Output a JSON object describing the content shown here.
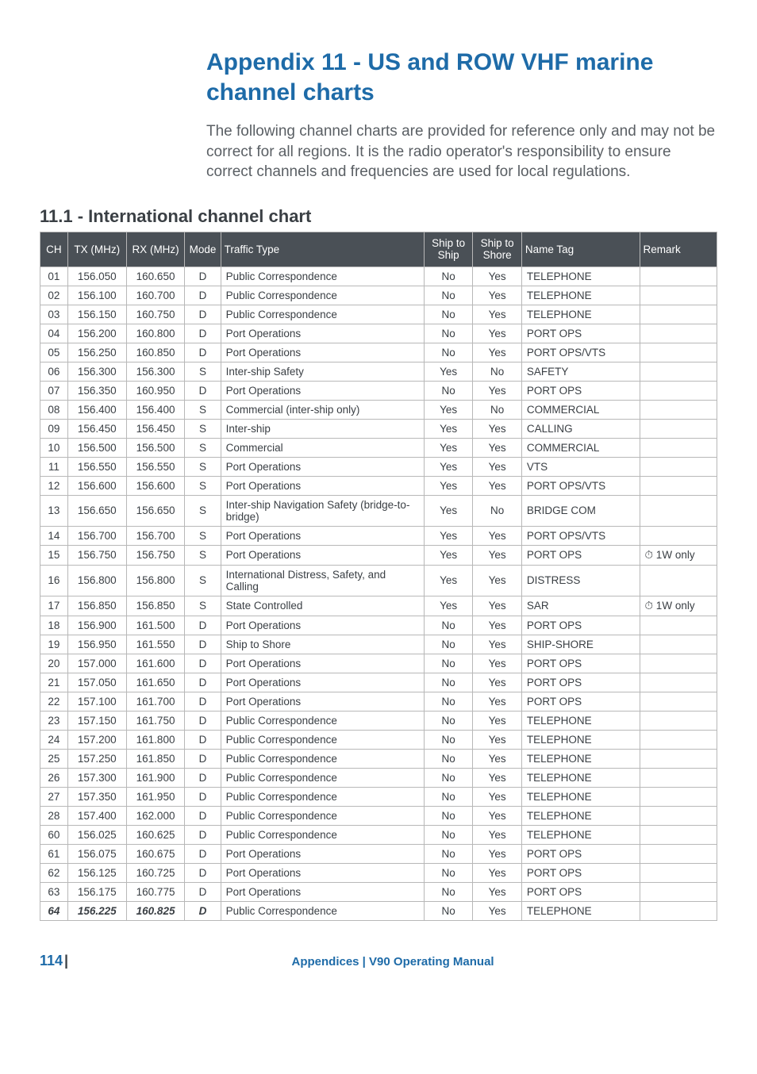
{
  "title": "Appendix 11  -  US and ROW VHF marine channel charts",
  "intro": "The following channel charts are provided for reference only and may not be correct for all regions. It is the radio operator's responsibility to ensure correct channels and frequencies are used for local regulations.",
  "section_title": "11.1 - International channel chart",
  "columns": [
    "CH",
    "TX (MHz)",
    "RX (MHz)",
    "Mode",
    "Traffic Type",
    "Ship to Ship",
    "Ship to Shore",
    "Name Tag",
    "Remark"
  ],
  "rows": [
    {
      "ch": "01",
      "tx": "156.050",
      "rx": "160.650",
      "mode": "D",
      "traffic": "Public Correspondence",
      "ship": "No",
      "shore": "Yes",
      "tag": "TELEPHONE",
      "remark": ""
    },
    {
      "ch": "02",
      "tx": "156.100",
      "rx": "160.700",
      "mode": "D",
      "traffic": "Public Correspondence",
      "ship": "No",
      "shore": "Yes",
      "tag": "TELEPHONE",
      "remark": ""
    },
    {
      "ch": "03",
      "tx": "156.150",
      "rx": "160.750",
      "mode": "D",
      "traffic": "Public Correspondence",
      "ship": "No",
      "shore": "Yes",
      "tag": "TELEPHONE",
      "remark": ""
    },
    {
      "ch": "04",
      "tx": "156.200",
      "rx": "160.800",
      "mode": "D",
      "traffic": "Port Operations",
      "ship": "No",
      "shore": "Yes",
      "tag": "PORT OPS",
      "remark": ""
    },
    {
      "ch": "05",
      "tx": "156.250",
      "rx": "160.850",
      "mode": "D",
      "traffic": "Port Operations",
      "ship": "No",
      "shore": "Yes",
      "tag": "PORT OPS/VTS",
      "remark": ""
    },
    {
      "ch": "06",
      "tx": "156.300",
      "rx": "156.300",
      "mode": "S",
      "traffic": "Inter-ship Safety",
      "ship": "Yes",
      "shore": "No",
      "tag": "SAFETY",
      "remark": ""
    },
    {
      "ch": "07",
      "tx": "156.350",
      "rx": "160.950",
      "mode": "D",
      "traffic": "Port Operations",
      "ship": "No",
      "shore": "Yes",
      "tag": "PORT OPS",
      "remark": ""
    },
    {
      "ch": "08",
      "tx": "156.400",
      "rx": "156.400",
      "mode": "S",
      "traffic": "Commercial (inter-ship only)",
      "ship": "Yes",
      "shore": "No",
      "tag": "COMMERCIAL",
      "remark": ""
    },
    {
      "ch": "09",
      "tx": "156.450",
      "rx": "156.450",
      "mode": "S",
      "traffic": "Inter-ship",
      "ship": "Yes",
      "shore": "Yes",
      "tag": "CALLING",
      "remark": ""
    },
    {
      "ch": "10",
      "tx": "156.500",
      "rx": "156.500",
      "mode": "S",
      "traffic": "Commercial",
      "ship": "Yes",
      "shore": "Yes",
      "tag": "COMMERCIAL",
      "remark": ""
    },
    {
      "ch": "11",
      "tx": "156.550",
      "rx": "156.550",
      "mode": "S",
      "traffic": "Port Operations",
      "ship": "Yes",
      "shore": "Yes",
      "tag": "VTS",
      "remark": ""
    },
    {
      "ch": "12",
      "tx": "156.600",
      "rx": "156.600",
      "mode": "S",
      "traffic": "Port Operations",
      "ship": "Yes",
      "shore": "Yes",
      "tag": "PORT OPS/VTS",
      "remark": ""
    },
    {
      "ch": "13",
      "tx": "156.650",
      "rx": "156.650",
      "mode": "S",
      "traffic": "Inter-ship Navigation Safety (bridge-to-bridge)",
      "ship": "Yes",
      "shore": "No",
      "tag": "BRIDGE COM",
      "remark": ""
    },
    {
      "ch": "14",
      "tx": "156.700",
      "rx": "156.700",
      "mode": "S",
      "traffic": "Port Operations",
      "ship": "Yes",
      "shore": "Yes",
      "tag": "PORT OPS/VTS",
      "remark": ""
    },
    {
      "ch": "15",
      "tx": "156.750",
      "rx": "156.750",
      "mode": "S",
      "traffic": "Port Operations",
      "ship": "Yes",
      "shore": "Yes",
      "tag": "PORT OPS",
      "remark": "⏱ 1W only"
    },
    {
      "ch": "16",
      "tx": "156.800",
      "rx": "156.800",
      "mode": "S",
      "traffic": "International Distress, Safety, and Calling",
      "ship": "Yes",
      "shore": "Yes",
      "tag": "DISTRESS",
      "remark": ""
    },
    {
      "ch": "17",
      "tx": "156.850",
      "rx": "156.850",
      "mode": "S",
      "traffic": "State Controlled",
      "ship": "Yes",
      "shore": "Yes",
      "tag": "SAR",
      "remark": "⏱ 1W only"
    },
    {
      "ch": "18",
      "tx": "156.900",
      "rx": "161.500",
      "mode": "D",
      "traffic": "Port Operations",
      "ship": "No",
      "shore": "Yes",
      "tag": "PORT OPS",
      "remark": ""
    },
    {
      "ch": "19",
      "tx": "156.950",
      "rx": "161.550",
      "mode": "D",
      "traffic": "Ship to Shore",
      "ship": "No",
      "shore": "Yes",
      "tag": "SHIP-SHORE",
      "remark": ""
    },
    {
      "ch": "20",
      "tx": "157.000",
      "rx": "161.600",
      "mode": "D",
      "traffic": "Port Operations",
      "ship": "No",
      "shore": "Yes",
      "tag": "PORT OPS",
      "remark": ""
    },
    {
      "ch": "21",
      "tx": "157.050",
      "rx": "161.650",
      "mode": "D",
      "traffic": "Port Operations",
      "ship": "No",
      "shore": "Yes",
      "tag": "PORT OPS",
      "remark": ""
    },
    {
      "ch": "22",
      "tx": "157.100",
      "rx": "161.700",
      "mode": "D",
      "traffic": "Port Operations",
      "ship": "No",
      "shore": "Yes",
      "tag": "PORT OPS",
      "remark": ""
    },
    {
      "ch": "23",
      "tx": "157.150",
      "rx": "161.750",
      "mode": "D",
      "traffic": "Public Correspondence",
      "ship": "No",
      "shore": "Yes",
      "tag": "TELEPHONE",
      "remark": ""
    },
    {
      "ch": "24",
      "tx": "157.200",
      "rx": "161.800",
      "mode": "D",
      "traffic": "Public Correspondence",
      "ship": "No",
      "shore": "Yes",
      "tag": "TELEPHONE",
      "remark": ""
    },
    {
      "ch": "25",
      "tx": "157.250",
      "rx": "161.850",
      "mode": "D",
      "traffic": "Public Correspondence",
      "ship": "No",
      "shore": "Yes",
      "tag": "TELEPHONE",
      "remark": ""
    },
    {
      "ch": "26",
      "tx": "157.300",
      "rx": "161.900",
      "mode": "D",
      "traffic": "Public Correspondence",
      "ship": "No",
      "shore": "Yes",
      "tag": "TELEPHONE",
      "remark": ""
    },
    {
      "ch": "27",
      "tx": "157.350",
      "rx": "161.950",
      "mode": "D",
      "traffic": "Public Correspondence",
      "ship": "No",
      "shore": "Yes",
      "tag": "TELEPHONE",
      "remark": ""
    },
    {
      "ch": "28",
      "tx": "157.400",
      "rx": "162.000",
      "mode": "D",
      "traffic": "Public Correspondence",
      "ship": "No",
      "shore": "Yes",
      "tag": "TELEPHONE",
      "remark": ""
    },
    {
      "ch": "60",
      "tx": "156.025",
      "rx": "160.625",
      "mode": "D",
      "traffic": "Public Correspondence",
      "ship": "No",
      "shore": "Yes",
      "tag": "TELEPHONE",
      "remark": ""
    },
    {
      "ch": "61",
      "tx": "156.075",
      "rx": "160.675",
      "mode": "D",
      "traffic": "Port Operations",
      "ship": "No",
      "shore": "Yes",
      "tag": "PORT OPS",
      "remark": ""
    },
    {
      "ch": "62",
      "tx": "156.125",
      "rx": "160.725",
      "mode": "D",
      "traffic": "Port Operations",
      "ship": "No",
      "shore": "Yes",
      "tag": "PORT OPS",
      "remark": ""
    },
    {
      "ch": "63",
      "tx": "156.175",
      "rx": "160.775",
      "mode": "D",
      "traffic": "Port Operations",
      "ship": "No",
      "shore": "Yes",
      "tag": "PORT OPS",
      "remark": ""
    },
    {
      "ch": "64",
      "tx": "156.225",
      "rx": "160.825",
      "mode": "D",
      "traffic": "Public Correspondence",
      "ship": "No",
      "shore": "Yes",
      "tag": "TELEPHONE",
      "remark": "",
      "italic": true
    }
  ],
  "footer": {
    "page": "114",
    "sep": "|",
    "center": "Appendices | V90 Operating Manual"
  },
  "colors": {
    "accent": "#1e6ba8",
    "header_bg": "#4a5056",
    "border": "#b8b8b8",
    "text": "#3a3f44"
  }
}
